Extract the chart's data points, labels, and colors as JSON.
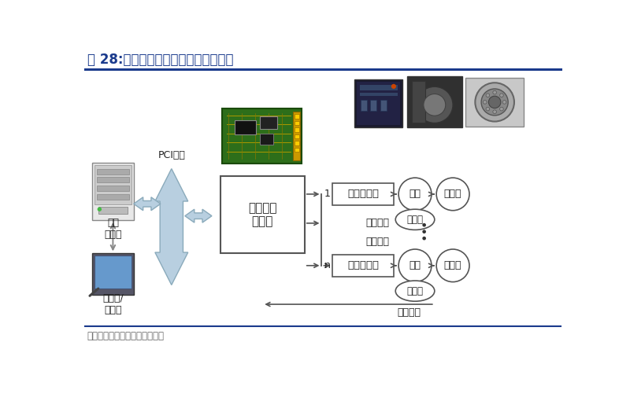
{
  "title": "图 28:工业机器人关键零部件之间关系",
  "source_text": "资料来源：东兴证券研究所整理",
  "title_color": "#1a3a8c",
  "bg_color": "#ffffff",
  "blue_line_color": "#1a3a8c",
  "main_box_label": "运动控制\n器板卡",
  "servo_label": "伺服驱动器",
  "motor_label": "电机",
  "reducer_label": "减速机",
  "encoder_label": "编码器",
  "computer_label": "工业\n计算机",
  "pci_label": "PCI总线",
  "display_label": "显示器/\n示教盒",
  "feedback1_label": "反馈信号",
  "control_label": "控制信号",
  "feedback2_label": "反馈信号",
  "label_1": "1",
  "label_n": "n",
  "box_ec": "#555555",
  "arrow_fc": "#b8cfe0",
  "arrow_ec": "#8aaabb"
}
